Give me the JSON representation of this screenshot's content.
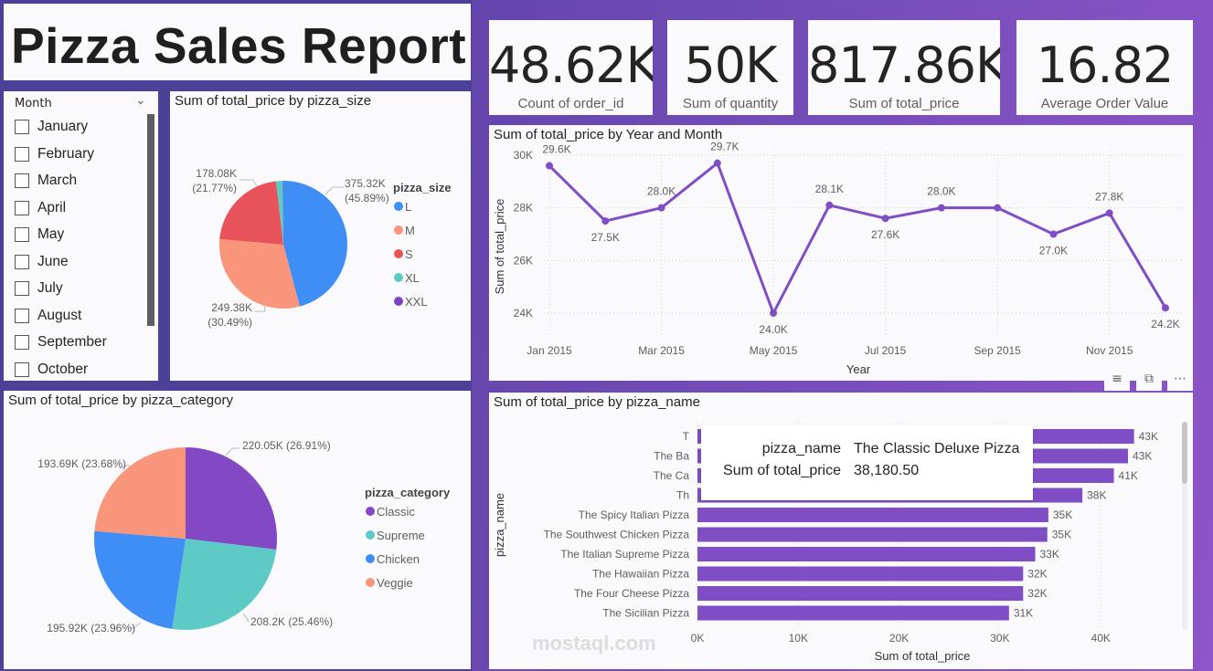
{
  "title": "Pizza Sales Report",
  "kpis": [
    {
      "value": "48.62K",
      "label": "Count of order_id"
    },
    {
      "value": "50K",
      "label": "Sum of quantity"
    },
    {
      "value": "817.86K",
      "label": "Sum of total_price"
    },
    {
      "value": "16.82",
      "label": "Average Order Value"
    }
  ],
  "slicer": {
    "header": "Month",
    "items": [
      "January",
      "February",
      "March",
      "April",
      "May",
      "June",
      "July",
      "August",
      "September",
      "October"
    ]
  },
  "colors": {
    "purple": "#7f4dc4",
    "blue": "#3f8ef6",
    "salmon": "#f8957a",
    "red": "#e8535b",
    "teal": "#5ecac6",
    "xxl": "#7d44c6"
  },
  "watermark": "mostaql.com",
  "chart_data": [
    {
      "type": "pie",
      "title": "Sum of total_price by pizza_size",
      "legend_title": "pizza_size",
      "legend": "right",
      "categories": [
        "L",
        "M",
        "S",
        "XL",
        "XXL"
      ],
      "values": [
        375.32,
        249.38,
        178.08,
        14.08,
        1.0
      ],
      "colors": [
        "#3f8ef6",
        "#f8957a",
        "#e8535b",
        "#5ecac6",
        "#7d44c6"
      ],
      "labels": [
        {
          "value": "375.32K",
          "pct": "(45.89%)"
        },
        {
          "value": "249.38K",
          "pct": "(30.49%)"
        },
        {
          "value": "178.08K",
          "pct": "(21.77%)"
        }
      ]
    },
    {
      "type": "pie",
      "title": "Sum of total_price by pizza_category",
      "legend_title": "pizza_category",
      "legend": "right",
      "categories": [
        "Classic",
        "Supreme",
        "Chicken",
        "Veggie"
      ],
      "values": [
        220.05,
        208.2,
        195.92,
        193.69
      ],
      "colors": [
        "#8349c4",
        "#5ecac6",
        "#3f8ef6",
        "#f8957a"
      ],
      "labels": [
        "220.05K (26.91%)",
        "208.2K (25.46%)",
        "195.92K (23.96%)",
        "193.69K (23.68%)"
      ]
    },
    {
      "type": "line",
      "title": "Sum of total_price by Year and Month",
      "xlabel": "Year",
      "ylabel": "Sum of total_price",
      "x": [
        "Jan 2015",
        "Feb 2015",
        "Mar 2015",
        "Apr 2015",
        "May 2015",
        "Jun 2015",
        "Jul 2015",
        "Aug 2015",
        "Sep 2015",
        "Oct 2015",
        "Nov 2015",
        "Dec 2015"
      ],
      "values": [
        29.6,
        27.5,
        28.0,
        29.7,
        24.0,
        28.1,
        27.6,
        28.0,
        28.0,
        27.0,
        27.8,
        24.2
      ],
      "data_labels": [
        "29.6K",
        "27.5K",
        "28.0K",
        "29.7K",
        "24.0K",
        "28.1K",
        "27.6K",
        "28.0K",
        "",
        "27.0K",
        "27.8K",
        "24.2K"
      ],
      "xticks": [
        "Jan 2015",
        "Mar 2015",
        "May 2015",
        "Jul 2015",
        "Sep 2015",
        "Nov 2015"
      ],
      "yticks": [
        "24K",
        "26K",
        "28K",
        "30K"
      ],
      "ytick_values": [
        24,
        26,
        28,
        30
      ],
      "ylim": [
        23.2,
        30.2
      ],
      "grid": true,
      "color": "#7f4dc4"
    },
    {
      "type": "bar",
      "orientation": "horizontal",
      "title": "Sum of total_price by pizza_name",
      "xlabel": "Sum of total_price",
      "ylabel": "pizza_name",
      "categories": [
        "T",
        "The Ba",
        "The Ca",
        "Th",
        "The Spicy Italian Pizza",
        "The Southwest Chicken Pizza",
        "The Italian Supreme Pizza",
        "The Hawaiian Pizza",
        "The Four Cheese Pizza",
        "The Sicilian Pizza"
      ],
      "values": [
        43.3,
        42.7,
        41.3,
        38.18,
        34.8,
        34.7,
        33.5,
        32.3,
        32.3,
        30.9
      ],
      "data_labels": [
        "43K",
        "43K",
        "41K",
        "38K",
        "35K",
        "35K",
        "33K",
        "32K",
        "32K",
        "31K"
      ],
      "xticks": [
        "0K",
        "10K",
        "20K",
        "30K",
        "40K"
      ],
      "xtick_values": [
        0,
        10,
        20,
        30,
        40
      ],
      "xlim": [
        0,
        45
      ],
      "grid": true,
      "color": "#7f4dc4",
      "tooltip": {
        "k1": "pizza_name",
        "v1": "The Classic Deluxe Pizza",
        "k2": "Sum of total_price",
        "v2": "38,180.50"
      }
    }
  ]
}
